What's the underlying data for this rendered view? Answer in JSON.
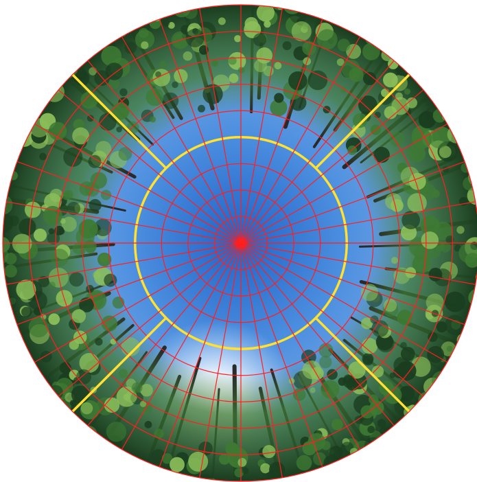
{
  "image": {
    "subject": "hemispherical-canopy-photo",
    "colors": {
      "background": "#ffffff",
      "sky_zenith": "#1f63c8",
      "sky_mid": "#4d8fdf",
      "sky_bright": "#f4f9ff",
      "foliage_dark": "#1a3d1f",
      "foliage_mid": "#3e7a33",
      "foliage_light": "#8cbf5a",
      "trunk": "#2a2a2a",
      "grid_lines": "#ff1f1f",
      "sector_lines": "#ffe033",
      "center_dot": "#ff1f1f"
    },
    "grid": {
      "concentric_rings": 9,
      "radial_spokes": 36,
      "sector_ring_index": 4,
      "sector_divider_bearings_deg": [
        45,
        135,
        225,
        315
      ]
    }
  }
}
